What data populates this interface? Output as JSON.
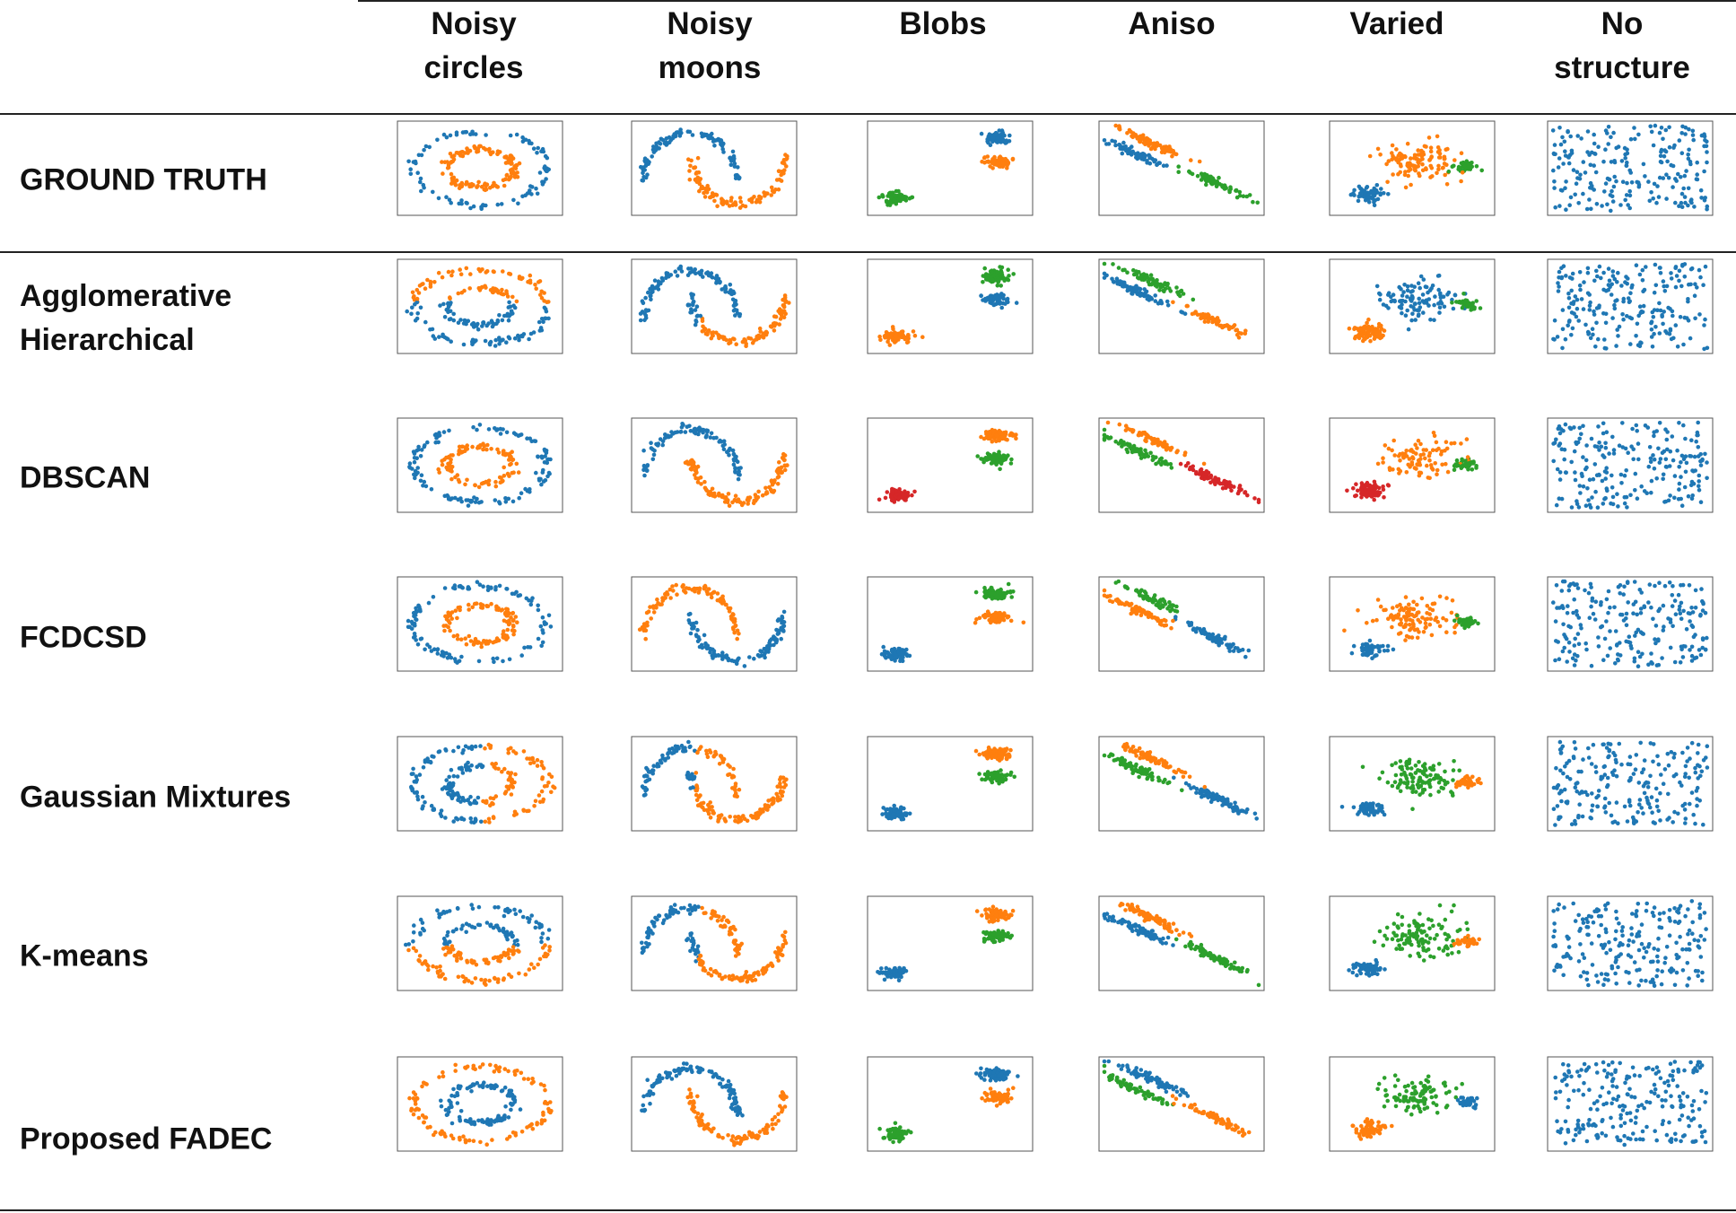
{
  "header": {
    "columns": [
      "Noisy circles",
      "Noisy moons",
      "Blobs",
      "Aniso",
      "Varied",
      "No structure"
    ]
  },
  "rows": [
    "GROUND TRUTH",
    "Agglomerative Hierarchical",
    "DBSCAN",
    "FCDCSD",
    "Gaussian Mixtures",
    "K-means",
    "Proposed FADEC"
  ]
}
